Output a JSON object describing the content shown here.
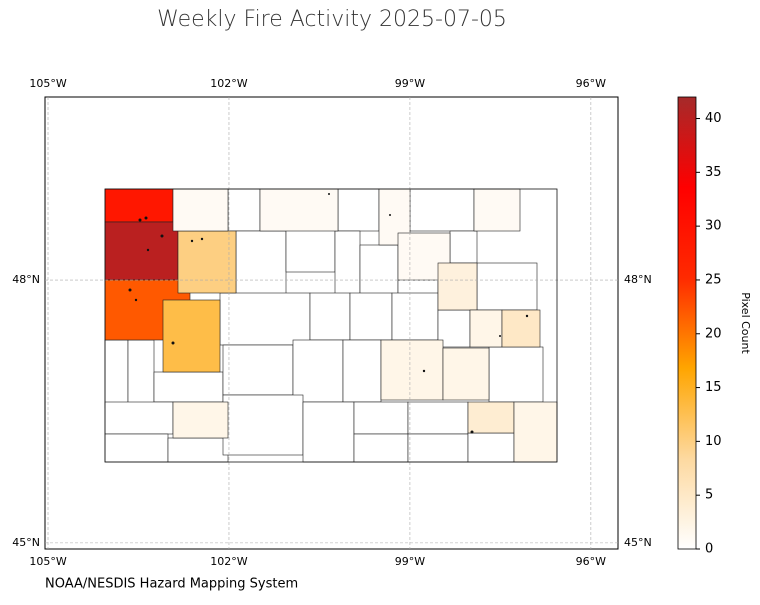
{
  "chart_data": {
    "type": "choropleth",
    "title": "Weekly Fire Activity 2025-07-05",
    "source": "NOAA/NESDIS Hazard Mapping System",
    "xlim": [
      -105.05,
      -95.55
    ],
    "ylim": [
      44.93,
      50.09
    ],
    "xticks": [
      {
        "value": -105,
        "label": "105°W"
      },
      {
        "value": -102,
        "label": "102°W"
      },
      {
        "value": -99,
        "label": "99°W"
      },
      {
        "value": -96,
        "label": "96°W"
      }
    ],
    "yticks": [
      {
        "value": 48,
        "label": "48°N"
      },
      {
        "value": 45,
        "label": "45°N"
      }
    ],
    "grid": true,
    "colorbar": {
      "label": "Pixel Count",
      "lim": [
        0,
        42
      ],
      "ticks": [
        0,
        5,
        10,
        15,
        20,
        25,
        30,
        35,
        40
      ],
      "colormap": [
        "#ffffff",
        "#fdd9a0",
        "#ffa500",
        "#ff2a00",
        "#ff0000",
        "#a52a2a"
      ]
    },
    "region_values": [
      29,
      40,
      22,
      10,
      13,
      1,
      1,
      1,
      1,
      1,
      3,
      2,
      5,
      2,
      2,
      2,
      4,
      2
    ]
  }
}
